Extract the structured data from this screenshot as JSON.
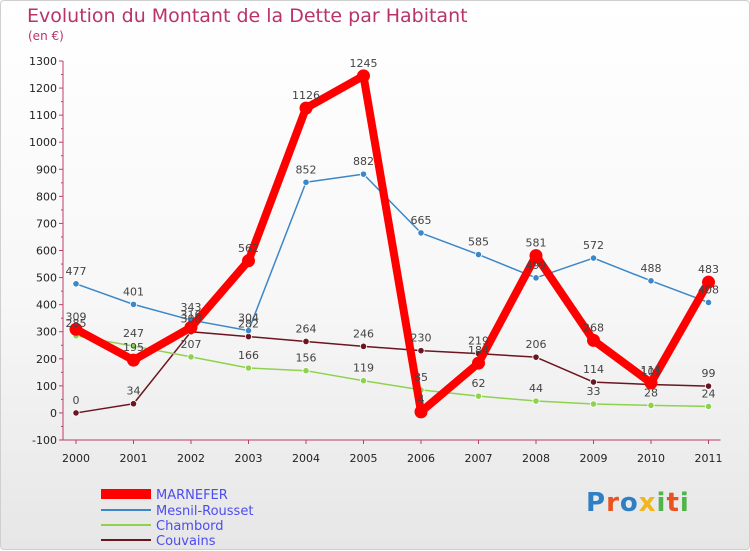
{
  "chart_data": {
    "type": "line",
    "title": "Evolution du Montant de la Dette par Habitant",
    "subtitle": "(en €)",
    "x": [
      "2000",
      "2001",
      "2002",
      "2003",
      "2004",
      "2005",
      "2006",
      "2007",
      "2008",
      "2009",
      "2010",
      "2011"
    ],
    "ylim": [
      -100,
      1300
    ],
    "yticks": [
      -100,
      0,
      100,
      200,
      300,
      400,
      500,
      600,
      700,
      800,
      900,
      1000,
      1100,
      1200,
      1300
    ],
    "grid": false,
    "legend_position": "bottom-left",
    "series": [
      {
        "name": "MARNEFER",
        "color": "#ff0000",
        "values": [
          309,
          195,
          316,
          562,
          1126,
          1245,
          4,
          184,
          581,
          268,
          111,
          483
        ]
      },
      {
        "name": "Mesnil-Rousset",
        "color": "#3b87c8",
        "values": [
          477,
          401,
          343,
          304,
          852,
          882,
          665,
          585,
          499,
          572,
          488,
          408
        ]
      },
      {
        "name": "Chambord",
        "color": "#8ed24e",
        "values": [
          285,
          247,
          207,
          166,
          156,
          119,
          85,
          62,
          44,
          33,
          28,
          24
        ]
      },
      {
        "name": "Couvains",
        "color": "#6b1520",
        "values": [
          0,
          34,
          300,
          282,
          264,
          246,
          230,
          219,
          206,
          114,
          105,
          99
        ]
      }
    ]
  },
  "brand": {
    "letters": [
      {
        "char": "P",
        "color": "#2f7fc4"
      },
      {
        "char": "r",
        "color": "#e8531f"
      },
      {
        "char": "o",
        "color": "#2f7fc4"
      },
      {
        "char": "x",
        "color": "#f2b61c"
      },
      {
        "char": "i",
        "color": "#4fb54a"
      },
      {
        "char": "t",
        "color": "#e8531f"
      },
      {
        "char": "i",
        "color": "#4fb54a"
      }
    ]
  }
}
